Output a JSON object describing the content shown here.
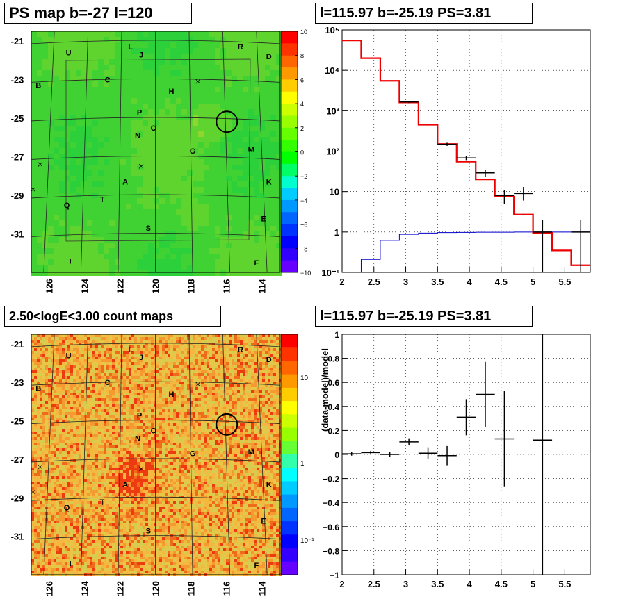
{
  "panels": {
    "ps_map": {
      "title": "PS map b=-27 l=120",
      "y_ticks": [
        "-21",
        "-23",
        "-25",
        "-27",
        "-29",
        "-31"
      ],
      "x_ticks": [
        "126",
        "124",
        "122",
        "120",
        "118",
        "116",
        "114"
      ],
      "colorbar_ticks": [
        "10",
        "8",
        "6",
        "4",
        "2",
        "0",
        "−2",
        "−4",
        "−6",
        "−8",
        "−10"
      ]
    },
    "count_map": {
      "title": "2.50<logE<3.00 count maps",
      "y_ticks": [
        "-21",
        "-23",
        "-25",
        "-27",
        "-29",
        "-31"
      ],
      "x_ticks": [
        "126",
        "124",
        "122",
        "120",
        "118",
        "116",
        "114"
      ],
      "colorbar_ticks": [
        "10",
        "1",
        "10⁻¹"
      ]
    },
    "spectrum": {
      "title": "l=115.97 b=-25.19 PS=3.81"
    },
    "residual": {
      "title": "l=115.97 b=-25.19 PS=3.81"
    }
  },
  "map_labels": [
    "U",
    "L",
    "J",
    "R",
    "D",
    "B",
    "C",
    "H",
    "P",
    "N",
    "O",
    "G",
    "M",
    "A",
    "K",
    "Q",
    "T",
    "S",
    "E",
    "I",
    "F"
  ],
  "colors": {
    "red": "#ee0000",
    "blue": "#0000cc",
    "map_green": "#33d633",
    "count_orange": "#f4b040"
  },
  "chart_data": [
    {
      "type": "heatmap",
      "title": "PS map b=-27 l=120",
      "xlabel": "",
      "ylabel": "",
      "xlim": [
        127,
        113
      ],
      "ylim": [
        -33,
        -20.5
      ],
      "colorbar_range": [
        -10,
        10
      ],
      "markers": [
        {
          "name": "U",
          "l": 124.9,
          "b": -21.6
        },
        {
          "name": "L",
          "l": 121.4,
          "b": -21.3
        },
        {
          "name": "J",
          "l": 120.8,
          "b": -21.7
        },
        {
          "name": "R",
          "l": 115.2,
          "b": -21.3
        },
        {
          "name": "D",
          "l": 113.6,
          "b": -21.8
        },
        {
          "name": "B",
          "l": 126.6,
          "b": -23.3
        },
        {
          "name": "C",
          "l": 122.7,
          "b": -23.0
        },
        {
          "name": "H",
          "l": 119.1,
          "b": -23.6
        },
        {
          "name": "P",
          "l": 120.9,
          "b": -24.7
        },
        {
          "name": "N",
          "l": 121.0,
          "b": -25.9
        },
        {
          "name": "O",
          "l": 120.1,
          "b": -25.5
        },
        {
          "name": "G",
          "l": 117.9,
          "b": -26.7
        },
        {
          "name": "M",
          "l": 114.6,
          "b": -26.6
        },
        {
          "name": "A",
          "l": 121.7,
          "b": -28.3
        },
        {
          "name": "K",
          "l": 113.6,
          "b": -28.3
        },
        {
          "name": "Q",
          "l": 125.0,
          "b": -29.5
        },
        {
          "name": "T",
          "l": 123.0,
          "b": -29.2
        },
        {
          "name": "S",
          "l": 120.4,
          "b": -30.7
        },
        {
          "name": "E",
          "l": 113.9,
          "b": -30.2
        },
        {
          "name": "I",
          "l": 124.8,
          "b": -32.4
        },
        {
          "name": "F",
          "l": 114.3,
          "b": -32.5
        }
      ],
      "circle": {
        "l": 115.97,
        "b": -25.19
      }
    },
    {
      "type": "heatmap",
      "title": "2.50<logE<3.00 count maps",
      "xlabel": "",
      "ylabel": "",
      "xlim": [
        127,
        113
      ],
      "ylim": [
        -33,
        -20.5
      ],
      "colorbar_scale": "log",
      "circle": {
        "l": 115.97,
        "b": -25.19
      }
    },
    {
      "type": "line",
      "title": "l=115.97 b=-25.19 PS=3.81",
      "xlabel": "",
      "ylabel": "",
      "xlim": [
        2,
        5.9
      ],
      "ylim": [
        0.1,
        100000
      ],
      "yscale": "log",
      "grid": true,
      "series": [
        {
          "values": [
            {
              "x0": 2.0,
              "x1": 2.3,
              "y": 55000
            },
            {
              "x0": 2.3,
              "x1": 2.6,
              "y": 20000
            },
            {
              "x0": 2.6,
              "x1": 2.9,
              "y": 5500
            },
            {
              "x0": 2.9,
              "x1": 3.2,
              "y": 1600
            },
            {
              "x0": 3.2,
              "x1": 3.5,
              "y": 450
            },
            {
              "x0": 3.5,
              "x1": 3.8,
              "y": 150
            },
            {
              "x0": 3.8,
              "x1": 4.1,
              "y": 55
            },
            {
              "x0": 4.1,
              "x1": 4.4,
              "y": 20
            },
            {
              "x0": 4.4,
              "x1": 4.7,
              "y": 7.5
            },
            {
              "x0": 4.7,
              "x1": 5.0,
              "y": 2.7
            },
            {
              "x0": 5.0,
              "x1": 5.3,
              "y": 0.95
            },
            {
              "x0": 5.3,
              "x1": 5.6,
              "y": 0.35
            },
            {
              "x0": 5.6,
              "x1": 5.9,
              "y": 0.15
            }
          ]
        },
        {
          "values": [
            {
              "x0": 2.3,
              "x1": 2.6,
              "y": 0.21
            },
            {
              "x0": 2.6,
              "x1": 2.9,
              "y": 0.62
            },
            {
              "x0": 2.9,
              "x1": 3.2,
              "y": 0.88
            },
            {
              "x0": 3.2,
              "x1": 3.5,
              "y": 0.94
            },
            {
              "x0": 3.5,
              "x1": 3.8,
              "y": 0.97
            },
            {
              "x0": 3.8,
              "x1": 4.1,
              "y": 0.98
            },
            {
              "x0": 4.1,
              "x1": 4.4,
              "y": 0.99
            },
            {
              "x0": 4.4,
              "x1": 4.7,
              "y": 0.99
            },
            {
              "x0": 4.7,
              "x1": 5.0,
              "y": 1.0
            },
            {
              "x0": 5.0,
              "x1": 5.3,
              "y": 1.0
            },
            {
              "x0": 5.3,
              "x1": 5.6,
              "y": 1.0
            },
            {
              "x0": 5.6,
              "x1": 5.9,
              "y": 1.0
            }
          ]
        },
        {
          "values": [
            {
              "x": 3.05,
              "y": 1650,
              "xerr": 0.15,
              "ylo": 1550,
              "yhi": 1750
            },
            {
              "x": 3.65,
              "y": 148,
              "xerr": 0.15,
              "ylo": 135,
              "yhi": 161
            },
            {
              "x": 3.95,
              "y": 68,
              "xerr": 0.15,
              "ylo": 60,
              "yhi": 77
            },
            {
              "x": 4.25,
              "y": 29,
              "xerr": 0.15,
              "ylo": 23,
              "yhi": 35
            },
            {
              "x": 4.55,
              "y": 8,
              "xerr": 0.15,
              "ylo": 5,
              "yhi": 11
            },
            {
              "x": 4.85,
              "y": 9,
              "xerr": 0.15,
              "ylo": 6,
              "yhi": 13
            },
            {
              "x": 5.15,
              "y": 1,
              "xerr": 0.15,
              "ylo": 0.1,
              "yhi": 2
            },
            {
              "x": 5.75,
              "y": 1,
              "xerr": 0.15,
              "ylo": 0.1,
              "yhi": 2
            }
          ]
        }
      ],
      "y_tick_labels": [
        "10⁻¹",
        "1",
        "10",
        "10²",
        "10³",
        "10⁴",
        "10⁵"
      ],
      "x_tick_labels": [
        "2",
        "2.5",
        "3",
        "3.5",
        "4",
        "4.5",
        "5",
        "5.5"
      ]
    },
    {
      "type": "scatter",
      "title": "l=115.97 b=-25.19 PS=3.81",
      "xlabel": "",
      "ylabel": "(data-model)/model",
      "xlim": [
        2,
        5.9
      ],
      "ylim": [
        -1,
        1
      ],
      "grid": true,
      "series": [
        {
          "values": [
            {
              "x": 2.15,
              "y": 0.005,
              "xerr": 0.15,
              "yerr": 0.015
            },
            {
              "x": 2.45,
              "y": 0.015,
              "xerr": 0.15,
              "yerr": 0.015
            },
            {
              "x": 2.75,
              "y": 0.0,
              "xerr": 0.15,
              "yerr": 0.02
            },
            {
              "x": 3.05,
              "y": 0.105,
              "xerr": 0.15,
              "yerr": 0.03
            },
            {
              "x": 3.35,
              "y": 0.01,
              "xerr": 0.15,
              "yerr": 0.05
            },
            {
              "x": 3.65,
              "y": -0.01,
              "xerr": 0.15,
              "yerr": 0.08
            },
            {
              "x": 3.95,
              "y": 0.31,
              "xerr": 0.15,
              "yerr": 0.15
            },
            {
              "x": 4.25,
              "y": 0.5,
              "xerr": 0.15,
              "yerr": 0.27
            },
            {
              "x": 4.55,
              "y": 0.13,
              "xerr": 0.15,
              "yerr": 0.4
            },
            {
              "x": 5.15,
              "y": 0.12,
              "xerr": 0.15,
              "yerr": 1.13
            }
          ]
        }
      ],
      "y_tick_labels": [
        "1",
        "0.8",
        "0.6",
        "0.4",
        "0.2",
        "0",
        "−0.2",
        "−0.4",
        "−0.6",
        "−0.8",
        "−1"
      ],
      "x_tick_labels": [
        "2",
        "2.5",
        "3",
        "3.5",
        "4",
        "4.5",
        "5",
        "5.5"
      ]
    }
  ]
}
